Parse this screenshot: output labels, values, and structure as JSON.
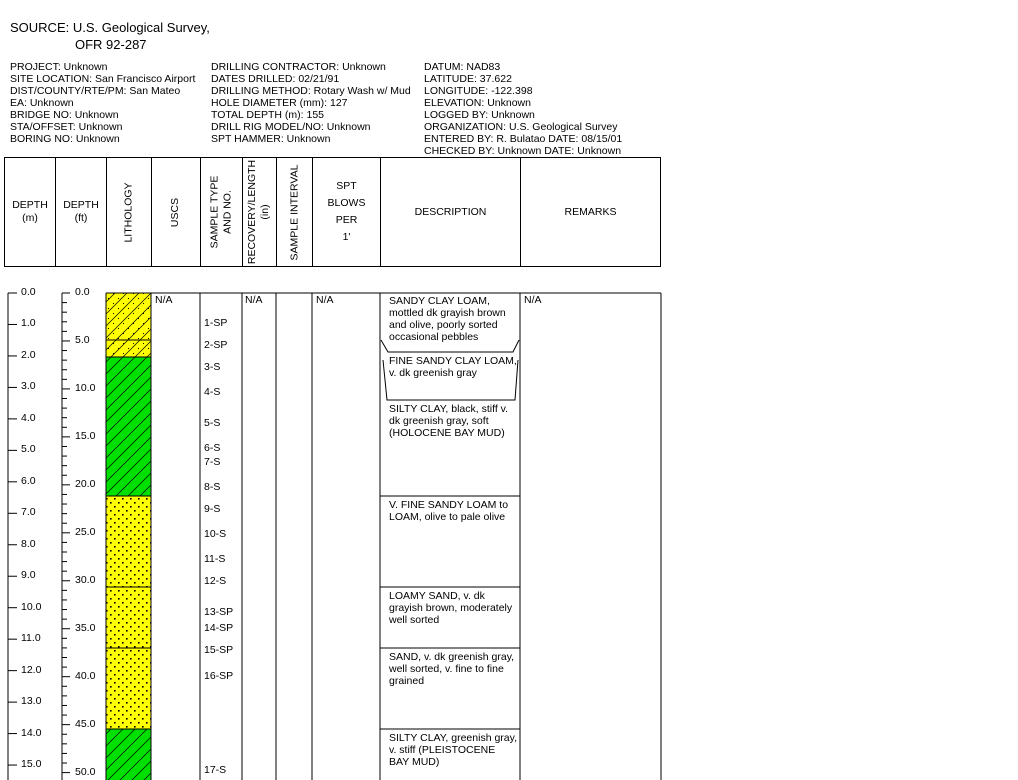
{
  "source": {
    "line1": "SOURCE:  U.S. Geological Survey,",
    "line2": "OFR 92-287"
  },
  "meta": {
    "col1": [
      "PROJECT:   Unknown",
      "SITE LOCATION: San Francisco Airport",
      "DIST/COUNTY/RTE/PM:   San Mateo",
      "EA:  Unknown",
      "BRIDGE NO:  Unknown",
      "STA/OFFSET: Unknown",
      "BORING NO: Unknown"
    ],
    "col2": [
      "DRILLING CONTRACTOR:  Unknown",
      "DATES DRILLED:    02/21/91",
      "DRILLING METHOD:    Rotary Wash w/ Mud",
      "HOLE DIAMETER (mm):  127",
      "TOTAL DEPTH (m):  155",
      "DRILL RIG MODEL/NO:    Unknown",
      "SPT HAMMER:   Unknown"
    ],
    "col3": [
      "DATUM:  NAD83",
      "LATITUDE:  37.622",
      "LONGITUDE:  -122.398",
      "ELEVATION:  Unknown",
      "LOGGED BY: Unknown",
      "ORGANIZATION:   U.S. Geological Survey",
      "ENTERED BY:  R. Bulatao     DATE: 08/15/01",
      "CHECKED BY:    Unknown     DATE: Unknown"
    ]
  },
  "columns": {
    "depth_m": [
      "DEPTH",
      "(m)"
    ],
    "depth_ft": [
      "DEPTH",
      "(ft)"
    ],
    "lithology": "LITHOLOGY",
    "uscs": "USCS",
    "sample_type": [
      "SAMPLE TYPE",
      "AND NO."
    ],
    "recovery": [
      "RECOVERY/LENGTH",
      "(in)"
    ],
    "sample_interval": "SAMPLE INTERVAL",
    "spt": [
      "SPT",
      "BLOWS",
      "PER",
      "1'"
    ],
    "description": "DESCRIPTION",
    "remarks": "REMARKS"
  },
  "scales": {
    "meters": [
      "0.0",
      "1.0",
      "2.0",
      "3.0",
      "4.0",
      "5.0",
      "6.0",
      "7.0",
      "8.0",
      "9.0",
      "10.0",
      "11.0",
      "12.0",
      "13.0",
      "14.0",
      "15.0"
    ],
    "feet": [
      "0.0",
      "5.0",
      "10.0",
      "15.0",
      "20.0",
      "25.0",
      "30.0",
      "35.0",
      "40.0",
      "45.0",
      "50.0"
    ]
  },
  "na": {
    "uscs": "N/A",
    "recovery": "N/A",
    "spt": "N/A",
    "remarks": "N/A"
  },
  "samples": [
    "1-SP",
    "2-SP",
    "3-S",
    "4-S",
    "5-S",
    "6-S",
    "7-S",
    "8-S",
    "9-S",
    "10-S",
    "11-S",
    "12-S",
    "13-SP",
    "14-SP",
    "15-SP",
    "16-SP",
    "17-S"
  ],
  "lithology_layers": [
    {
      "pattern": "hatch-dots",
      "color": "#ffff00"
    },
    {
      "pattern": "hatch-dots",
      "color": "#ffff00"
    },
    {
      "pattern": "hatch",
      "color": "#00e000"
    },
    {
      "pattern": "dots",
      "color": "#ffff00"
    },
    {
      "pattern": "dots",
      "color": "#ffff00"
    },
    {
      "pattern": "dots",
      "color": "#ffff00"
    },
    {
      "pattern": "hatch",
      "color": "#00e000"
    }
  ],
  "descriptions": [
    "SANDY CLAY LOAM, mottled dk grayish brown and olive, poorly sorted occasional pebbles",
    "FINE SANDY CLAY LOAM, v. dk greenish gray",
    "SILTY CLAY, black, stiff v. dk greenish gray, soft (HOLOCENE BAY MUD)",
    "V. FINE SANDY LOAM to LOAM, olive to pale olive",
    "LOAMY SAND, v. dk grayish brown, moderately well sorted",
    "SAND, v. dk greenish gray, well sorted, v. fine to fine grained",
    "SILTY CLAY, greenish gray, v. stiff (PLEISTOCENE BAY MUD)"
  ]
}
